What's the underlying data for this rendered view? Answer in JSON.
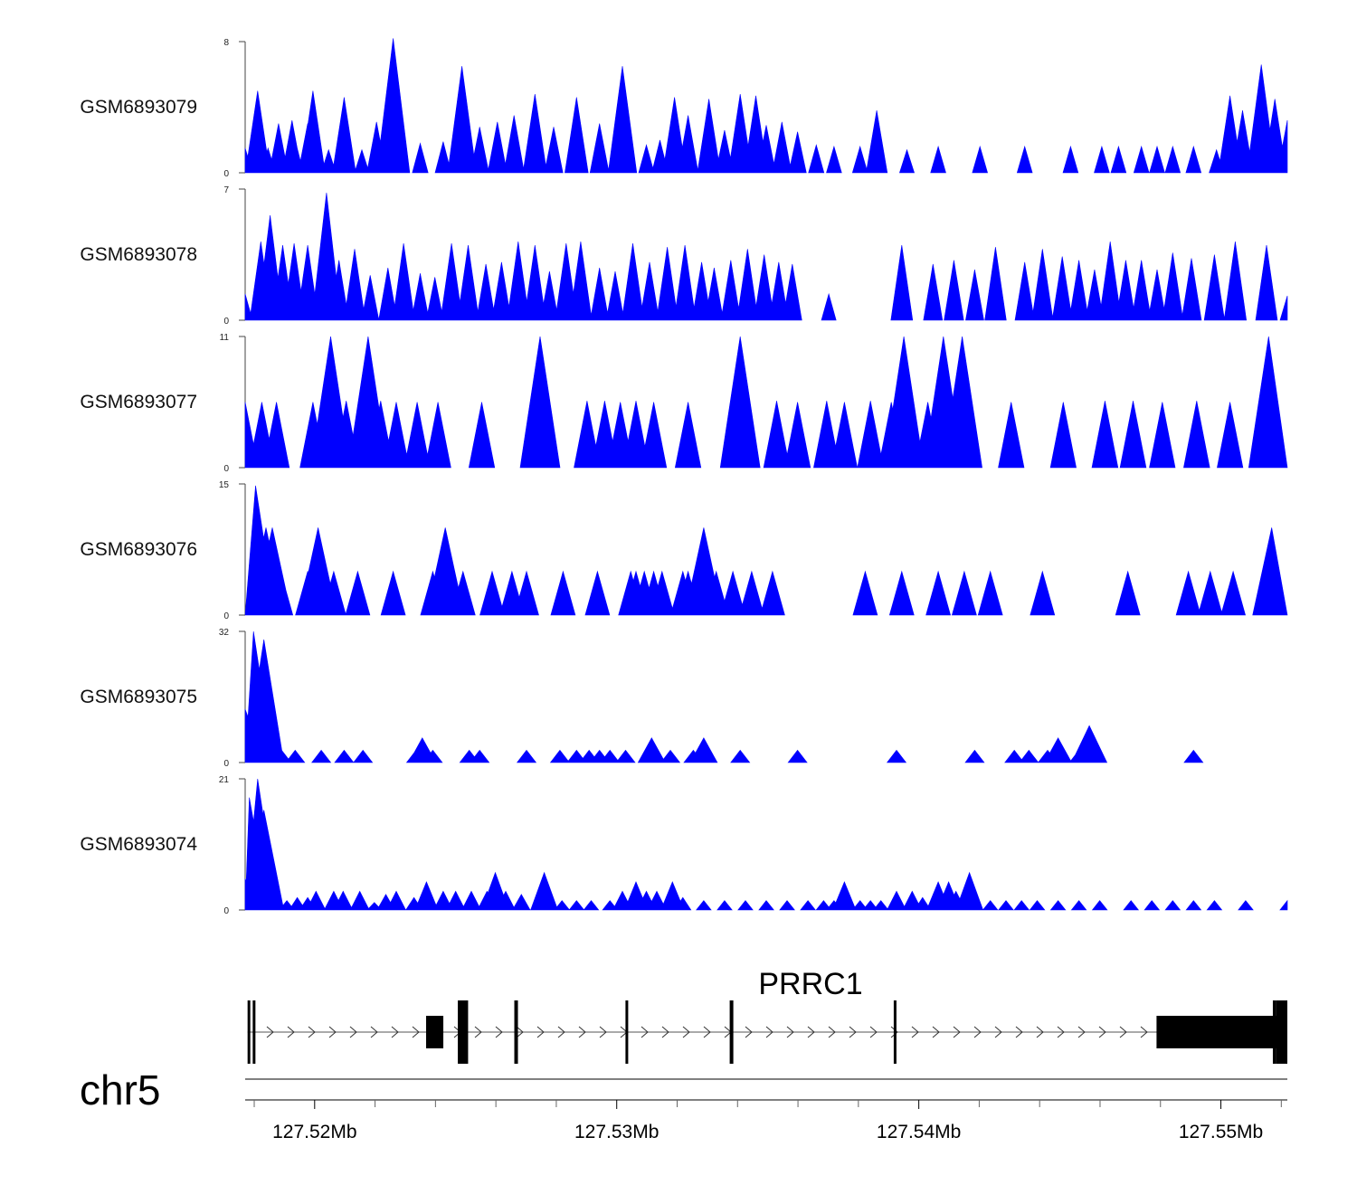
{
  "chart_data": {
    "type": "area",
    "region": {
      "chromosome": "chr5",
      "start_mb": 127.5177,
      "end_mb": 127.5522
    },
    "fill_color": "#0000ff",
    "tracks": [
      {
        "name": "GSM6893079",
        "ymax": 8,
        "ymin": 0,
        "peaks": [
          [
            0.0,
            1.5
          ],
          [
            0.012,
            5.0
          ],
          [
            0.022,
            1.5
          ],
          [
            0.032,
            3.0
          ],
          [
            0.045,
            3.2
          ],
          [
            0.048,
            2.0
          ],
          [
            0.06,
            3.0
          ],
          [
            0.065,
            5.0
          ],
          [
            0.08,
            1.4
          ],
          [
            0.095,
            4.6
          ],
          [
            0.112,
            1.4
          ],
          [
            0.126,
            3.1
          ],
          [
            0.142,
            8.2
          ],
          [
            0.168,
            1.8
          ],
          [
            0.19,
            1.9
          ],
          [
            0.208,
            6.5
          ],
          [
            0.225,
            2.8
          ],
          [
            0.242,
            3.1
          ],
          [
            0.258,
            3.5
          ],
          [
            0.278,
            4.8
          ],
          [
            0.296,
            2.8
          ],
          [
            0.318,
            4.6
          ],
          [
            0.34,
            3.0
          ],
          [
            0.362,
            6.5
          ],
          [
            0.385,
            1.7
          ],
          [
            0.398,
            2.0
          ],
          [
            0.412,
            4.6
          ],
          [
            0.425,
            3.5
          ],
          [
            0.445,
            4.5
          ],
          [
            0.46,
            2.6
          ],
          [
            0.475,
            4.8
          ],
          [
            0.49,
            4.7
          ],
          [
            0.5,
            2.9
          ],
          [
            0.515,
            3.1
          ],
          [
            0.53,
            2.5
          ],
          [
            0.548,
            1.7
          ],
          [
            0.565,
            1.6
          ],
          [
            0.59,
            1.6
          ],
          [
            0.606,
            3.8
          ],
          [
            0.635,
            1.4
          ],
          [
            0.665,
            1.6
          ],
          [
            0.705,
            1.6
          ],
          [
            0.748,
            1.6
          ],
          [
            0.792,
            1.6
          ],
          [
            0.822,
            1.6
          ],
          [
            0.838,
            1.6
          ],
          [
            0.86,
            1.6
          ],
          [
            0.875,
            1.6
          ],
          [
            0.89,
            1.6
          ],
          [
            0.91,
            1.6
          ],
          [
            0.932,
            1.4
          ],
          [
            0.945,
            4.7
          ],
          [
            0.957,
            3.8
          ],
          [
            0.975,
            6.6
          ],
          [
            0.988,
            4.5
          ],
          [
            1.0,
            3.2
          ]
        ]
      },
      {
        "name": "GSM6893078",
        "ymax": 7,
        "ymin": 0,
        "peaks": [
          [
            0.0,
            1.4
          ],
          [
            0.015,
            4.2
          ],
          [
            0.024,
            5.6
          ],
          [
            0.036,
            4.0
          ],
          [
            0.047,
            4.1
          ],
          [
            0.06,
            4.0
          ],
          [
            0.074,
            4.2
          ],
          [
            0.078,
            6.8
          ],
          [
            0.09,
            3.2
          ],
          [
            0.105,
            3.8
          ],
          [
            0.12,
            2.4
          ],
          [
            0.137,
            2.8
          ],
          [
            0.152,
            4.1
          ],
          [
            0.168,
            2.5
          ],
          [
            0.182,
            2.3
          ],
          [
            0.198,
            4.1
          ],
          [
            0.214,
            4.0
          ],
          [
            0.231,
            3.0
          ],
          [
            0.246,
            3.1
          ],
          [
            0.262,
            4.2
          ],
          [
            0.278,
            4.0
          ],
          [
            0.292,
            2.6
          ],
          [
            0.308,
            4.1
          ],
          [
            0.322,
            4.2
          ],
          [
            0.34,
            2.8
          ],
          [
            0.355,
            2.6
          ],
          [
            0.372,
            4.1
          ],
          [
            0.388,
            3.1
          ],
          [
            0.405,
            3.9
          ],
          [
            0.422,
            4.0
          ],
          [
            0.438,
            3.1
          ],
          [
            0.45,
            2.8
          ],
          [
            0.466,
            3.2
          ],
          [
            0.482,
            3.8
          ],
          [
            0.498,
            3.5
          ],
          [
            0.512,
            3.1
          ],
          [
            0.525,
            3.0
          ],
          [
            0.56,
            1.4
          ],
          [
            0.63,
            4.0
          ],
          [
            0.66,
            3.0
          ],
          [
            0.68,
            3.2
          ],
          [
            0.7,
            2.7
          ],
          [
            0.72,
            3.9
          ],
          [
            0.748,
            3.1
          ],
          [
            0.765,
            3.8
          ],
          [
            0.784,
            3.4
          ],
          [
            0.8,
            3.2
          ],
          [
            0.815,
            2.7
          ],
          [
            0.83,
            4.2
          ],
          [
            0.845,
            3.2
          ],
          [
            0.86,
            3.2
          ],
          [
            0.875,
            2.7
          ],
          [
            0.89,
            3.6
          ],
          [
            0.908,
            3.3
          ],
          [
            0.93,
            3.5
          ],
          [
            0.95,
            4.2
          ],
          [
            0.98,
            4.0
          ],
          [
            1.0,
            1.3
          ]
        ]
      },
      {
        "name": "GSM6893077",
        "ymax": 11,
        "ymin": 0,
        "peaks": [
          [
            0.0,
            5.5
          ],
          [
            0.016,
            5.5
          ],
          [
            0.03,
            5.5
          ],
          [
            0.065,
            5.5
          ],
          [
            0.082,
            11.0
          ],
          [
            0.097,
            5.6
          ],
          [
            0.118,
            11.0
          ],
          [
            0.13,
            5.6
          ],
          [
            0.145,
            5.5
          ],
          [
            0.165,
            5.5
          ],
          [
            0.185,
            5.5
          ],
          [
            0.227,
            5.5
          ],
          [
            0.283,
            11.0
          ],
          [
            0.328,
            5.6
          ],
          [
            0.345,
            5.6
          ],
          [
            0.36,
            5.5
          ],
          [
            0.375,
            5.6
          ],
          [
            0.392,
            5.5
          ],
          [
            0.425,
            5.5
          ],
          [
            0.475,
            11.0
          ],
          [
            0.51,
            5.6
          ],
          [
            0.53,
            5.5
          ],
          [
            0.558,
            5.6
          ],
          [
            0.575,
            5.5
          ],
          [
            0.6,
            5.6
          ],
          [
            0.62,
            5.5
          ],
          [
            0.632,
            11.0
          ],
          [
            0.655,
            5.5
          ],
          [
            0.67,
            11.0
          ],
          [
            0.688,
            11.0
          ],
          [
            0.735,
            5.5
          ],
          [
            0.785,
            5.5
          ],
          [
            0.825,
            5.6
          ],
          [
            0.852,
            5.6
          ],
          [
            0.88,
            5.5
          ],
          [
            0.913,
            5.6
          ],
          [
            0.945,
            5.5
          ],
          [
            0.982,
            11.0
          ]
        ]
      },
      {
        "name": "GSM6893076",
        "ymax": 15,
        "ymin": 0,
        "peaks": [
          [
            0.01,
            14.8
          ],
          [
            0.02,
            10.0
          ],
          [
            0.026,
            10.0
          ],
          [
            0.034,
            5.0
          ],
          [
            0.06,
            5.0
          ],
          [
            0.07,
            10.0
          ],
          [
            0.085,
            5.0
          ],
          [
            0.108,
            5.0
          ],
          [
            0.142,
            5.0
          ],
          [
            0.18,
            5.0
          ],
          [
            0.192,
            10.0
          ],
          [
            0.209,
            5.0
          ],
          [
            0.237,
            5.0
          ],
          [
            0.256,
            5.0
          ],
          [
            0.27,
            5.0
          ],
          [
            0.305,
            5.0
          ],
          [
            0.338,
            5.0
          ],
          [
            0.37,
            5.0
          ],
          [
            0.375,
            5.0
          ],
          [
            0.383,
            5.0
          ],
          [
            0.392,
            5.0
          ],
          [
            0.4,
            5.0
          ],
          [
            0.42,
            5.0
          ],
          [
            0.425,
            5.0
          ],
          [
            0.44,
            10.0
          ],
          [
            0.452,
            5.0
          ],
          [
            0.468,
            5.0
          ],
          [
            0.486,
            5.0
          ],
          [
            0.506,
            5.0
          ],
          [
            0.595,
            5.0
          ],
          [
            0.63,
            5.0
          ],
          [
            0.665,
            5.0
          ],
          [
            0.69,
            5.0
          ],
          [
            0.715,
            5.0
          ],
          [
            0.765,
            5.0
          ],
          [
            0.847,
            5.0
          ],
          [
            0.905,
            5.0
          ],
          [
            0.926,
            5.0
          ],
          [
            0.948,
            5.0
          ],
          [
            0.985,
            10.0
          ]
        ]
      },
      {
        "name": "GSM6893075",
        "ymax": 32,
        "ymin": 0,
        "peaks": [
          [
            0.0,
            13.0
          ],
          [
            0.008,
            32.0
          ],
          [
            0.014,
            10.0
          ],
          [
            0.018,
            30.0
          ],
          [
            0.025,
            5.0
          ],
          [
            0.035,
            3.0
          ],
          [
            0.048,
            3.0
          ],
          [
            0.073,
            3.0
          ],
          [
            0.095,
            3.0
          ],
          [
            0.113,
            3.0
          ],
          [
            0.164,
            3.0
          ],
          [
            0.17,
            6.0
          ],
          [
            0.18,
            3.0
          ],
          [
            0.215,
            3.0
          ],
          [
            0.225,
            3.0
          ],
          [
            0.27,
            3.0
          ],
          [
            0.302,
            3.0
          ],
          [
            0.318,
            3.0
          ],
          [
            0.33,
            3.0
          ],
          [
            0.34,
            3.0
          ],
          [
            0.35,
            3.0
          ],
          [
            0.365,
            3.0
          ],
          [
            0.39,
            6.0
          ],
          [
            0.408,
            3.0
          ],
          [
            0.43,
            3.0
          ],
          [
            0.44,
            6.0
          ],
          [
            0.475,
            3.0
          ],
          [
            0.53,
            3.0
          ],
          [
            0.625,
            3.0
          ],
          [
            0.7,
            3.0
          ],
          [
            0.738,
            3.0
          ],
          [
            0.752,
            3.0
          ],
          [
            0.77,
            3.0
          ],
          [
            0.78,
            6.0
          ],
          [
            0.8,
            3.0
          ],
          [
            0.81,
            9.0
          ],
          [
            0.91,
            3.0
          ]
        ]
      },
      {
        "name": "GSM6893074",
        "ymax": 21,
        "ymin": 0,
        "peaks": [
          [
            0.0,
            5.0
          ],
          [
            0.004,
            18.0
          ],
          [
            0.008,
            12.0
          ],
          [
            0.012,
            21.0
          ],
          [
            0.018,
            16.0
          ],
          [
            0.026,
            5.0
          ],
          [
            0.04,
            1.5
          ],
          [
            0.05,
            2.0
          ],
          [
            0.06,
            2.0
          ],
          [
            0.068,
            3.0
          ],
          [
            0.085,
            3.0
          ],
          [
            0.094,
            3.0
          ],
          [
            0.11,
            3.0
          ],
          [
            0.124,
            1.2
          ],
          [
            0.135,
            2.5
          ],
          [
            0.145,
            3.0
          ],
          [
            0.162,
            2.0
          ],
          [
            0.174,
            4.5
          ],
          [
            0.19,
            3.0
          ],
          [
            0.202,
            3.0
          ],
          [
            0.217,
            3.0
          ],
          [
            0.232,
            3.0
          ],
          [
            0.24,
            6.0
          ],
          [
            0.25,
            3.0
          ],
          [
            0.265,
            2.5
          ],
          [
            0.287,
            6.0
          ],
          [
            0.304,
            1.5
          ],
          [
            0.318,
            1.5
          ],
          [
            0.332,
            1.5
          ],
          [
            0.35,
            1.5
          ],
          [
            0.362,
            3.0
          ],
          [
            0.375,
            4.5
          ],
          [
            0.385,
            3.0
          ],
          [
            0.395,
            3.0
          ],
          [
            0.41,
            4.5
          ],
          [
            0.42,
            2.0
          ],
          [
            0.44,
            1.5
          ],
          [
            0.46,
            1.5
          ],
          [
            0.48,
            1.5
          ],
          [
            0.5,
            1.5
          ],
          [
            0.52,
            1.5
          ],
          [
            0.54,
            1.5
          ],
          [
            0.555,
            1.5
          ],
          [
            0.565,
            1.5
          ],
          [
            0.575,
            4.5
          ],
          [
            0.59,
            1.5
          ],
          [
            0.6,
            1.5
          ],
          [
            0.61,
            1.5
          ],
          [
            0.625,
            3.0
          ],
          [
            0.64,
            3.0
          ],
          [
            0.65,
            2.0
          ],
          [
            0.665,
            4.5
          ],
          [
            0.675,
            4.5
          ],
          [
            0.682,
            3.0
          ],
          [
            0.695,
            6.0
          ],
          [
            0.715,
            1.5
          ],
          [
            0.73,
            1.5
          ],
          [
            0.745,
            1.5
          ],
          [
            0.76,
            1.5
          ],
          [
            0.78,
            1.5
          ],
          [
            0.8,
            1.5
          ],
          [
            0.82,
            1.5
          ],
          [
            0.85,
            1.5
          ],
          [
            0.87,
            1.5
          ],
          [
            0.89,
            1.5
          ],
          [
            0.91,
            1.5
          ],
          [
            0.93,
            1.5
          ],
          [
            0.96,
            1.5
          ],
          [
            1.0,
            1.5
          ]
        ]
      }
    ],
    "gene": {
      "name": "PRRC1",
      "strand": "+",
      "exons_mb": [
        [
          127.51778,
          127.51786
        ],
        [
          127.51795,
          127.51798
        ],
        [
          127.52369,
          127.52426
        ],
        [
          127.52474,
          127.52508
        ],
        [
          127.52661,
          127.52673
        ],
        [
          127.53029,
          127.53037
        ],
        [
          127.53374,
          127.53386
        ],
        [
          127.53917,
          127.53923
        ],
        [
          127.54787,
          127.552
        ],
        [
          127.55172,
          127.55183
        ],
        [
          127.55183,
          127.5522
        ]
      ]
    },
    "x_axis": {
      "chromosome_label": "chr5",
      "ticks_mb": [
        127.52,
        127.53,
        127.54,
        127.55
      ],
      "tick_labels": [
        "127.52Mb",
        "127.53Mb",
        "127.54Mb",
        "127.55Mb"
      ],
      "minor_ticks_mb": [
        127.518,
        127.522,
        127.524,
        127.526,
        127.528,
        127.532,
        127.534,
        127.536,
        127.538,
        127.542,
        127.544,
        127.546,
        127.548,
        127.552
      ]
    }
  }
}
